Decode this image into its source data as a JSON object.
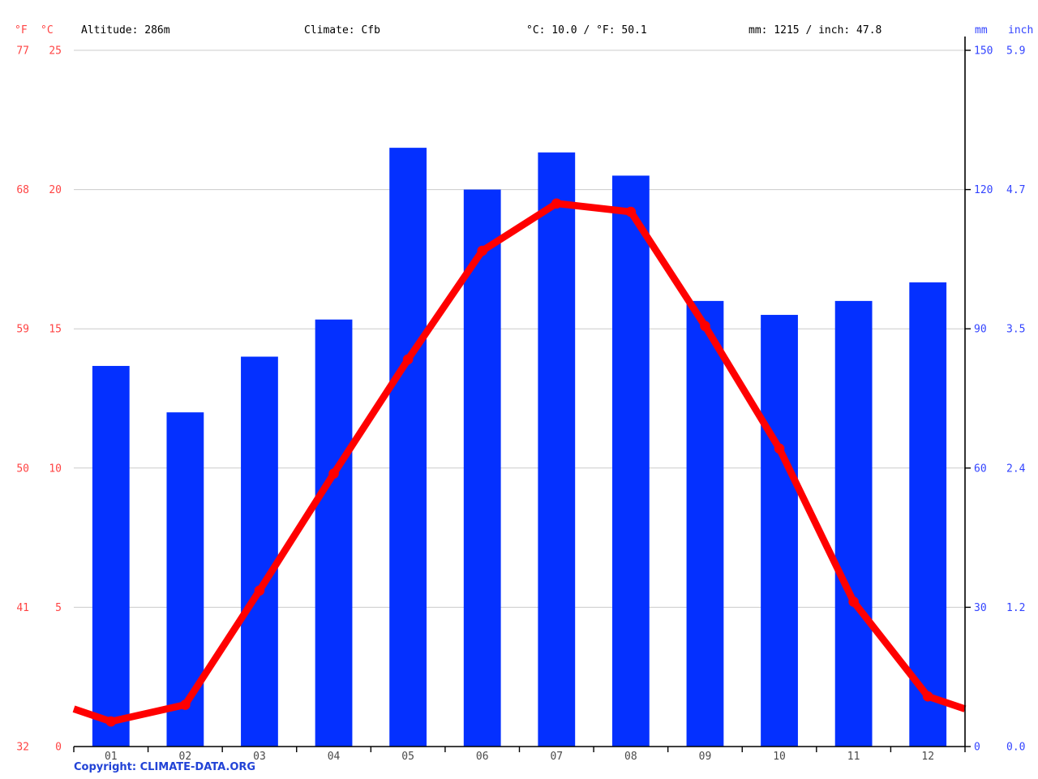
{
  "header": {
    "fahrenheit_label": "°F",
    "celsius_label": "°C",
    "altitude": "Altitude: 286m",
    "climate": "Climate: Cfb",
    "temperature_summary": "°C: 10.0 / °F: 50.1",
    "precipitation_summary": "mm: 1215 / inch: 47.8",
    "mm_label": "mm",
    "inch_label": "inch"
  },
  "footer": {
    "copyright": "Copyright: CLIMATE-DATA.ORG"
  },
  "chart_data": {
    "type": "bar",
    "subtype": "climate bar+line combo",
    "categories": [
      "01",
      "02",
      "03",
      "04",
      "05",
      "06",
      "07",
      "08",
      "09",
      "10",
      "11",
      "12"
    ],
    "series": [
      {
        "name": "precipitation",
        "type": "bar",
        "unit": "mm",
        "values": [
          82,
          72,
          84,
          92,
          129,
          120,
          128,
          123,
          96,
          93,
          96,
          100
        ]
      },
      {
        "name": "temperature",
        "type": "line",
        "unit": "°C",
        "values": [
          0.9,
          1.5,
          5.6,
          9.8,
          13.9,
          17.8,
          19.5,
          19.2,
          15.1,
          10.7,
          5.2,
          1.8
        ]
      }
    ],
    "annotations": {
      "mean_temperature_c": 10.0,
      "mean_temperature_f": 50.1,
      "total_precipitation_mm": 1215,
      "total_precipitation_inch": 47.8
    },
    "axes": {
      "left_fahrenheit_ticks": [
        "77",
        "68",
        "59",
        "50",
        "41",
        "32"
      ],
      "left_celsius_ticks": [
        "25",
        "20",
        "15",
        "10",
        "5",
        "0"
      ],
      "right_mm_ticks": [
        "150",
        "120",
        "90",
        "60",
        "30",
        "0"
      ],
      "right_inch_ticks": [
        "5.9",
        "4.7",
        "3.5",
        "2.4",
        "1.2",
        "0.0"
      ],
      "celsius_range": [
        0,
        25
      ],
      "mm_range": [
        0,
        150
      ]
    },
    "grid": true,
    "legend": "none",
    "colors": {
      "bar": "#0430ff",
      "line": "#ff0000",
      "red_label": "#ff4444",
      "blue_label": "#3344ff",
      "grid": "#cccccc",
      "axis": "#000000",
      "month_label": "#4a4a4a"
    }
  }
}
